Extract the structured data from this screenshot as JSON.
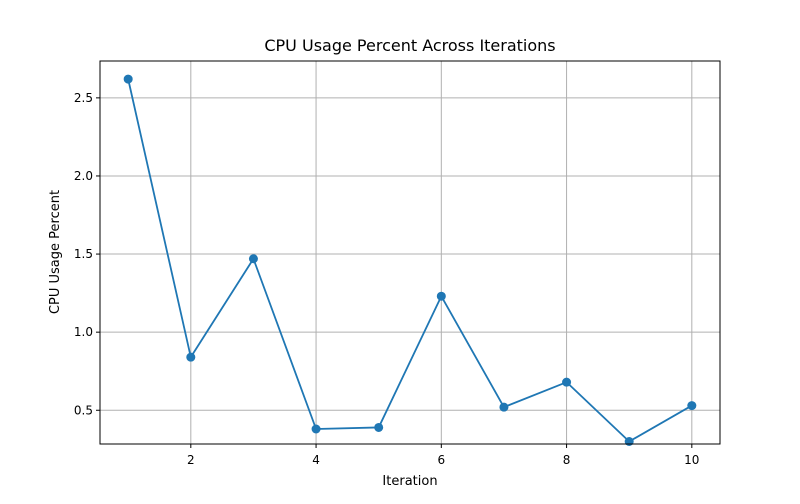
{
  "chart_data": {
    "type": "line",
    "title": "CPU Usage Percent Across Iterations",
    "xlabel": "Iteration",
    "ylabel": "CPU Usage Percent",
    "x": [
      1,
      2,
      3,
      4,
      5,
      6,
      7,
      8,
      9,
      10
    ],
    "series": [
      {
        "values": [
          2.62,
          0.84,
          1.47,
          0.38,
          0.39,
          1.23,
          0.52,
          0.68,
          0.3,
          0.53
        ],
        "color": "#1f77b4",
        "marker": "circle"
      }
    ],
    "xticks": [
      2,
      4,
      6,
      8,
      10
    ],
    "xtick_labels": [
      "2",
      "4",
      "6",
      "8",
      "10"
    ],
    "yticks": [
      0.5,
      1.0,
      1.5,
      2.0,
      2.5
    ],
    "ytick_labels": [
      "0.5",
      "1.0",
      "1.5",
      "2.0",
      "2.5"
    ],
    "xlim": [
      0.55,
      10.45
    ],
    "ylim": [
      0.284,
      2.736
    ],
    "grid": true,
    "grid_color": "#b0b0b0",
    "axis_color": "#000000"
  }
}
